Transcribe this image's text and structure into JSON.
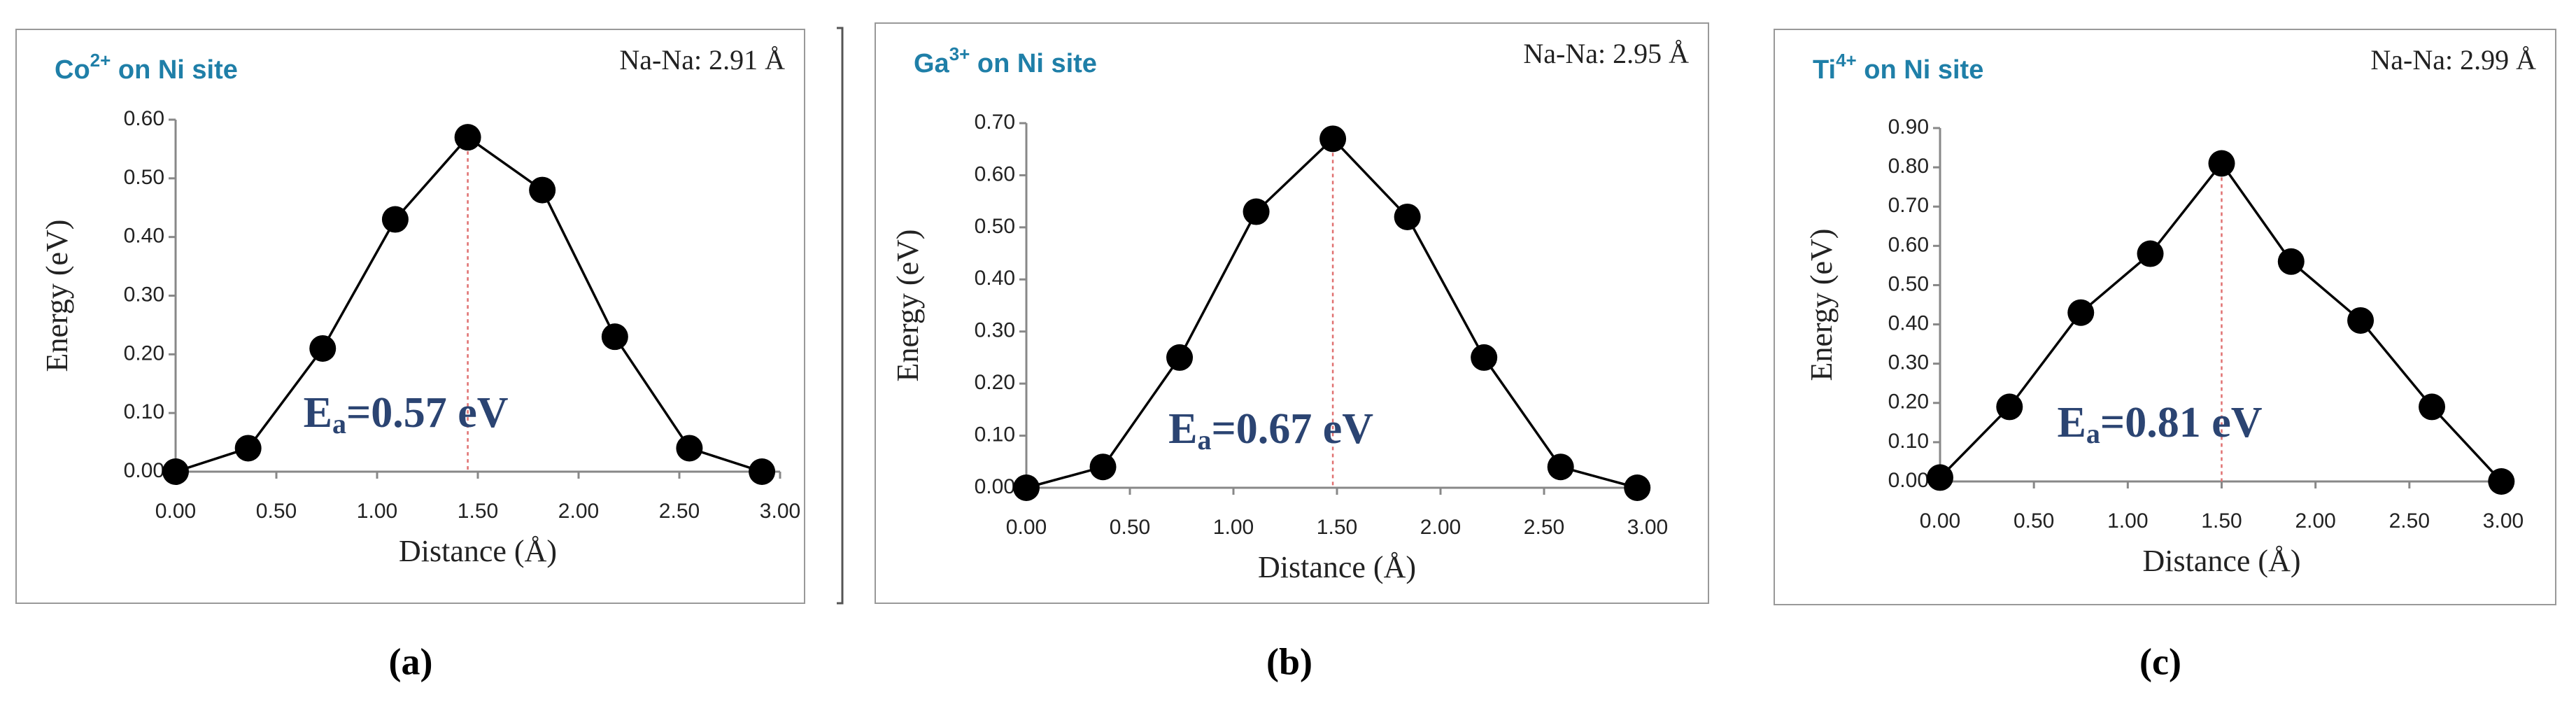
{
  "chart_data": [
    {
      "type": "line",
      "title": {
        "element": "Co",
        "charge": "2+",
        "rest": " on Ni site"
      },
      "note": "Na-Na: 2.91 Å",
      "annotation": {
        "symbol": "E",
        "subscript": "a",
        "text": "=0.57 eV"
      },
      "xlabel": "Distance (Å)",
      "ylabel": "Energy (eV)",
      "panel_label": "(a)",
      "x": [
        0,
        0.36,
        0.73,
        1.09,
        1.45,
        1.82,
        2.18,
        2.55,
        2.91
      ],
      "values": [
        0,
        0.04,
        0.21,
        0.43,
        0.57,
        0.48,
        0.23,
        0.04,
        0
      ],
      "color": "#000000",
      "peak_line_color": "#e07070",
      "xlim": [
        0,
        3
      ],
      "ylim": [
        0,
        0.6
      ],
      "xticks": [
        {
          "value": 0,
          "label": "0.00"
        },
        {
          "value": 0.5,
          "label": "0.50"
        },
        {
          "value": 1,
          "label": "1.00"
        },
        {
          "value": 1.5,
          "label": "1.50"
        },
        {
          "value": 2,
          "label": "2.00"
        },
        {
          "value": 2.5,
          "label": "2.50"
        },
        {
          "value": 3,
          "label": "3.00"
        }
      ],
      "yticks": [
        {
          "value": 0,
          "label": "0.00"
        },
        {
          "value": 0.1,
          "label": "0.10"
        },
        {
          "value": 0.2,
          "label": "0.20"
        },
        {
          "value": 0.3,
          "label": "0.30"
        },
        {
          "value": 0.4,
          "label": "0.40"
        },
        {
          "value": 0.5,
          "label": "0.50"
        },
        {
          "value": 0.6,
          "label": "0.60"
        }
      ]
    },
    {
      "type": "line",
      "title": {
        "element": "Ga",
        "charge": "3+",
        "rest": " on Ni site"
      },
      "note": "Na-Na: 2.95 Å",
      "annotation": {
        "symbol": "E",
        "subscript": "a",
        "text": "=0.67 eV"
      },
      "xlabel": "Distance (Å)",
      "ylabel": "Energy (eV)",
      "panel_label": "(b)",
      "x": [
        0,
        0.37,
        0.74,
        1.11,
        1.48,
        1.84,
        2.21,
        2.58,
        2.95
      ],
      "values": [
        0,
        0.04,
        0.25,
        0.53,
        0.67,
        0.52,
        0.25,
        0.04,
        0
      ],
      "color": "#000000",
      "peak_line_color": "#e07070",
      "xlim": [
        0,
        3
      ],
      "ylim": [
        0,
        0.7
      ],
      "xticks": [
        {
          "value": 0,
          "label": "0.00"
        },
        {
          "value": 0.5,
          "label": "0.50"
        },
        {
          "value": 1,
          "label": "1.00"
        },
        {
          "value": 1.5,
          "label": "1.50"
        },
        {
          "value": 2,
          "label": "2.00"
        },
        {
          "value": 2.5,
          "label": "2.50"
        },
        {
          "value": 3,
          "label": "3.00"
        }
      ],
      "yticks": [
        {
          "value": 0,
          "label": "0.00"
        },
        {
          "value": 0.1,
          "label": "0.10"
        },
        {
          "value": 0.2,
          "label": "0.20"
        },
        {
          "value": 0.3,
          "label": "0.30"
        },
        {
          "value": 0.4,
          "label": "0.40"
        },
        {
          "value": 0.5,
          "label": "0.50"
        },
        {
          "value": 0.6,
          "label": "0.60"
        },
        {
          "value": 0.7,
          "label": "0.70"
        }
      ]
    },
    {
      "type": "line",
      "title": {
        "element": "Ti",
        "charge": "4+",
        "rest": " on Ni site"
      },
      "note": "Na-Na: 2.99 Å",
      "annotation": {
        "symbol": "E",
        "subscript": "a",
        "text": "=0.81 eV"
      },
      "xlabel": "Distance (Å)",
      "ylabel": "Energy (eV)",
      "panel_label": "(c)",
      "x": [
        0,
        0.37,
        0.75,
        1.12,
        1.5,
        1.87,
        2.24,
        2.62,
        2.99
      ],
      "values": [
        0.01,
        0.19,
        0.43,
        0.58,
        0.81,
        0.56,
        0.41,
        0.19,
        0
      ],
      "color": "#000000",
      "peak_line_color": "#e07070",
      "xlim": [
        0,
        3
      ],
      "ylim": [
        0,
        0.9
      ],
      "xticks": [
        {
          "value": 0,
          "label": "0.00"
        },
        {
          "value": 0.5,
          "label": "0.50"
        },
        {
          "value": 1,
          "label": "1.00"
        },
        {
          "value": 1.5,
          "label": "1.50"
        },
        {
          "value": 2,
          "label": "2.00"
        },
        {
          "value": 2.5,
          "label": "2.50"
        },
        {
          "value": 3,
          "label": "3.00"
        }
      ],
      "yticks": [
        {
          "value": 0,
          "label": "0.00"
        },
        {
          "value": 0.1,
          "label": "0.10"
        },
        {
          "value": 0.2,
          "label": "0.20"
        },
        {
          "value": 0.3,
          "label": "0.30"
        },
        {
          "value": 0.4,
          "label": "0.40"
        },
        {
          "value": 0.5,
          "label": "0.50"
        },
        {
          "value": 0.6,
          "label": "0.60"
        },
        {
          "value": 0.7,
          "label": "0.70"
        },
        {
          "value": 0.8,
          "label": "0.80"
        },
        {
          "value": 0.9,
          "label": "0.90"
        }
      ]
    }
  ]
}
